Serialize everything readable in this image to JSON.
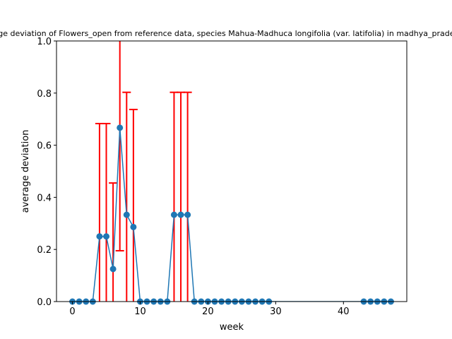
{
  "chart_data": {
    "type": "line",
    "title": "Average deviation of Flowers_open from reference data, species Mahua-Madhuca longifolia (var. latifolia) in madhya_pradesh, India",
    "xlabel": "week",
    "ylabel": "average deviation",
    "xlim": [
      -2.35,
      49.35
    ],
    "ylim": [
      0,
      1.0
    ],
    "xticks": [
      0,
      10,
      20,
      30,
      40
    ],
    "xtick_labels": [
      "0",
      "10",
      "20",
      "30",
      "40"
    ],
    "yticks": [
      0.0,
      0.2,
      0.4,
      0.6,
      0.8,
      1.0
    ],
    "ytick_labels": [
      "0.0",
      "0.2",
      "0.4",
      "0.6",
      "0.8",
      "1.0"
    ],
    "grid": false,
    "legend": "none",
    "colors": {
      "line": "#1f77b4",
      "errorbar": "#ff0000"
    },
    "series": [
      {
        "x": [
          0,
          1,
          2,
          3,
          4,
          5,
          6,
          7,
          8,
          9,
          10,
          11,
          12,
          13,
          14,
          15,
          16,
          17,
          18,
          19,
          20,
          21,
          22,
          23,
          24,
          25,
          26,
          27,
          28,
          29,
          43,
          44,
          45,
          46,
          47
        ],
        "y": [
          0,
          0,
          0,
          0,
          0.25,
          0.25,
          0.125,
          0.667,
          0.333,
          0.286,
          0,
          0,
          0,
          0,
          0,
          0.333,
          0.333,
          0.333,
          0,
          0,
          0,
          0,
          0,
          0,
          0,
          0,
          0,
          0,
          0,
          0,
          0,
          0,
          0,
          0,
          0
        ],
        "yerr_low": [
          0,
          0,
          0,
          0,
          0,
          0,
          0,
          0.195,
          0,
          0,
          0,
          0,
          0,
          0,
          0,
          0,
          0,
          0,
          0,
          0,
          0,
          0,
          0,
          0,
          0,
          0,
          0,
          0,
          0,
          0,
          0,
          0,
          0,
          0,
          0
        ],
        "yerr_high": [
          0,
          0,
          0,
          0,
          0.683,
          0.683,
          0.455,
          1.14,
          0.803,
          0.737,
          0,
          0,
          0,
          0,
          0,
          0.803,
          0.803,
          0.803,
          0,
          0,
          0,
          0,
          0,
          0,
          0,
          0,
          0,
          0,
          0,
          0,
          0,
          0,
          0,
          0,
          0
        ]
      }
    ]
  }
}
